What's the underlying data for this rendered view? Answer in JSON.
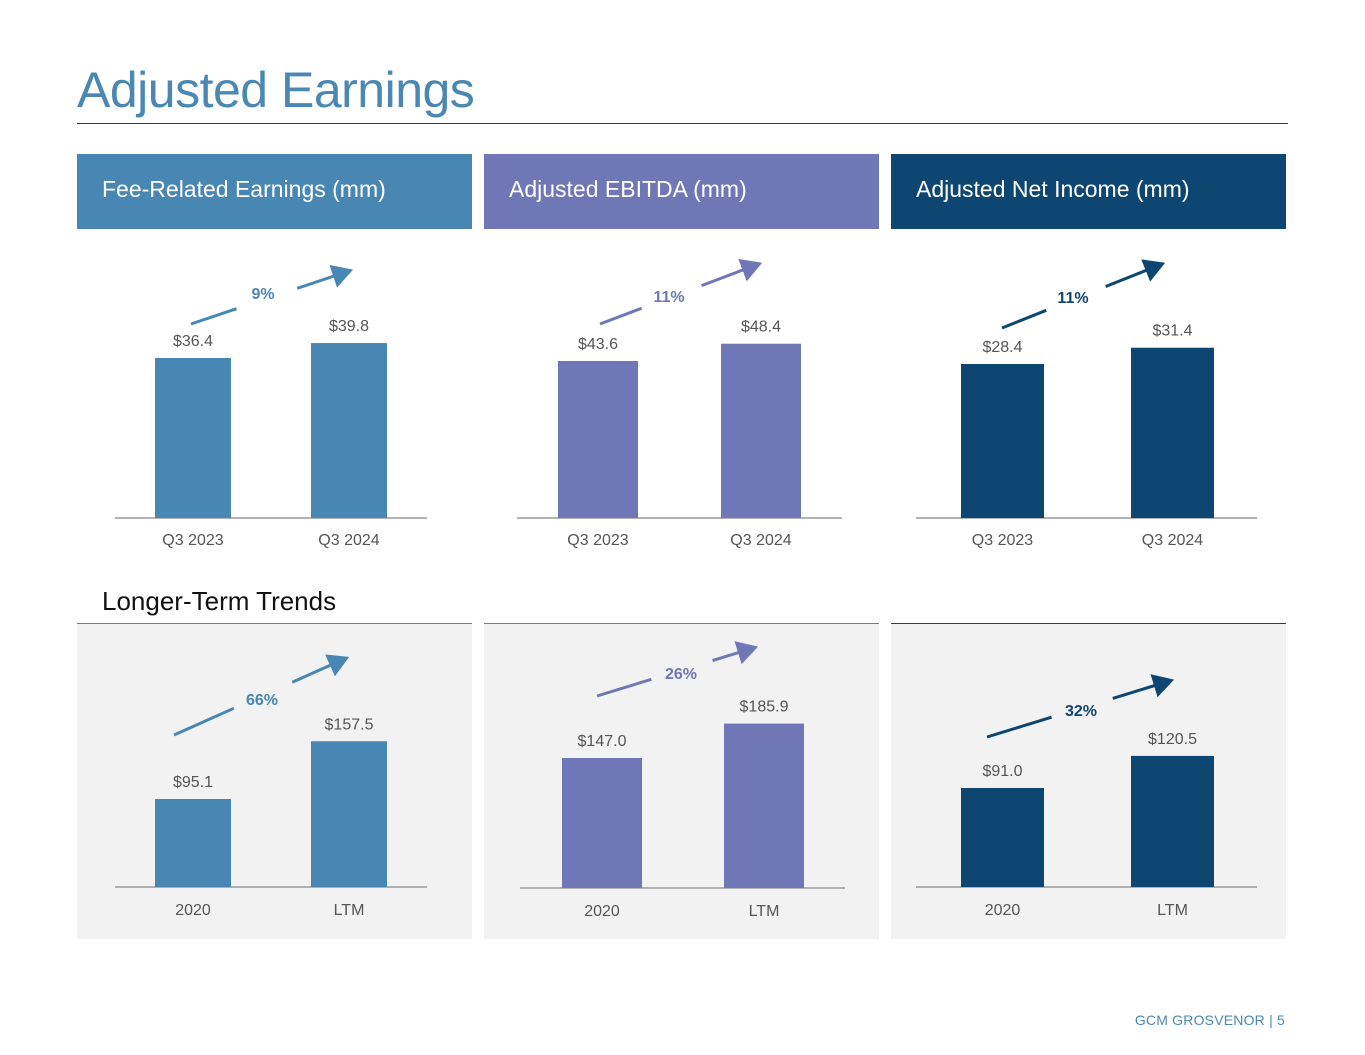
{
  "title": "Adjusted Earnings",
  "subtitle": "Longer-Term Trends",
  "footer": "GCM GROSVENOR | 5",
  "colors": {
    "title": "#4a88b3",
    "fre": "#4886b3",
    "ebitda": "#7077b6",
    "ani": "#0d4671",
    "panel_bg": "#f2f2f2"
  },
  "headers": [
    {
      "label": "Fee-Related Earnings (mm)",
      "color": "#4886b3"
    },
    {
      "label": "Adjusted EBITDA (mm)",
      "color": "#7077b6"
    },
    {
      "label": "Adjusted Net Income (mm)",
      "color": "#0d4671"
    }
  ],
  "chart_data": [
    {
      "type": "bar",
      "id": "fre-quarter",
      "categories": [
        "Q3 2023",
        "Q3 2024"
      ],
      "values": [
        36.4,
        39.8
      ],
      "value_labels": [
        "$36.4",
        "$39.8"
      ],
      "growth_label": "9%",
      "color": "#4886b3"
    },
    {
      "type": "bar",
      "id": "ebitda-quarter",
      "categories": [
        "Q3 2023",
        "Q3 2024"
      ],
      "values": [
        43.6,
        48.4
      ],
      "value_labels": [
        "$43.6",
        "$48.4"
      ],
      "growth_label": "11%",
      "color": "#7077b6"
    },
    {
      "type": "bar",
      "id": "ani-quarter",
      "categories": [
        "Q3 2023",
        "Q3 2024"
      ],
      "values": [
        28.4,
        31.4
      ],
      "value_labels": [
        "$28.4",
        "$31.4"
      ],
      "growth_label": "11%",
      "color": "#0d4671"
    },
    {
      "type": "bar",
      "id": "fre-trend",
      "categories": [
        "2020",
        "LTM"
      ],
      "values": [
        95.1,
        157.5
      ],
      "value_labels": [
        "$95.1",
        "$157.5"
      ],
      "growth_label": "66%",
      "color": "#4886b3"
    },
    {
      "type": "bar",
      "id": "ebitda-trend",
      "categories": [
        "2020",
        "LTM"
      ],
      "values": [
        147.0,
        185.9
      ],
      "value_labels": [
        "$147.0",
        "$185.9"
      ],
      "growth_label": "26%",
      "color": "#7077b6"
    },
    {
      "type": "bar",
      "id": "ani-trend",
      "categories": [
        "2020",
        "LTM"
      ],
      "values": [
        91.0,
        120.5
      ],
      "value_labels": [
        "$91.0",
        "$120.5"
      ],
      "growth_label": "32%",
      "color": "#0d4671"
    }
  ]
}
